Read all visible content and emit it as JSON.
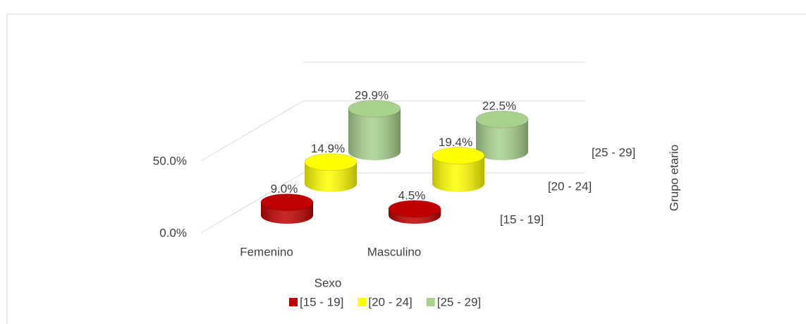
{
  "chart_data": {
    "type": "bar3d",
    "categories": [
      "Femenino",
      "Masculino"
    ],
    "series": [
      {
        "name": "[15 - 19]",
        "color": "#c00000",
        "values": [
          9.0,
          4.5
        ],
        "value_labels": [
          "9.0%",
          "4.5%"
        ]
      },
      {
        "name": "[20 - 24]",
        "color": "#ffff00",
        "values": [
          14.9,
          19.4
        ],
        "value_labels": [
          "14.9%",
          "19.4%"
        ]
      },
      {
        "name": "[25 - 29]",
        "color": "#a9d18e",
        "values": [
          29.9,
          22.5
        ],
        "value_labels": [
          "29.9%",
          "22.5%"
        ]
      }
    ],
    "ylim": [
      0,
      100
    ],
    "yticks": [
      {
        "value": 0,
        "label": "0.0%"
      },
      {
        "value": 50,
        "label": "50.0%"
      }
    ],
    "xlabel": "Sexo",
    "zlabel": "Grupo etario",
    "grid": true,
    "legend": "bottom"
  }
}
